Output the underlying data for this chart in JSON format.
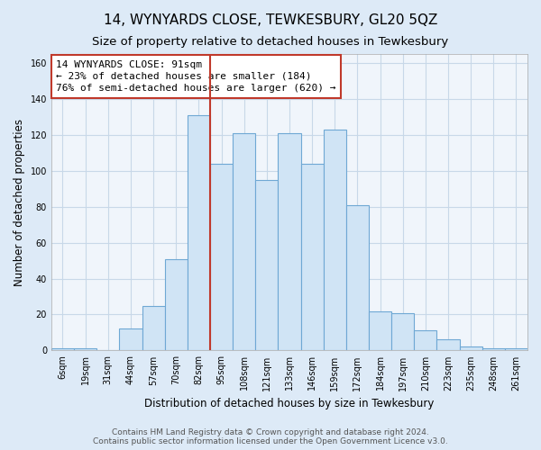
{
  "title": "14, WYNYARDS CLOSE, TEWKESBURY, GL20 5QZ",
  "subtitle": "Size of property relative to detached houses in Tewkesbury",
  "xlabel": "Distribution of detached houses by size in Tewkesbury",
  "ylabel": "Number of detached properties",
  "categories": [
    "6sqm",
    "19sqm",
    "31sqm",
    "44sqm",
    "57sqm",
    "70sqm",
    "82sqm",
    "95sqm",
    "108sqm",
    "121sqm",
    "133sqm",
    "146sqm",
    "159sqm",
    "172sqm",
    "184sqm",
    "197sqm",
    "210sqm",
    "223sqm",
    "235sqm",
    "248sqm",
    "261sqm"
  ],
  "values": [
    1,
    1,
    0,
    12,
    25,
    51,
    131,
    104,
    121,
    95,
    121,
    104,
    123,
    81,
    22,
    21,
    11,
    6,
    2,
    1,
    1
  ],
  "bar_color": "#d0e4f5",
  "bar_edge_color": "#6fa8d4",
  "vline_color": "#c0392b",
  "vline_x_index": 6.5,
  "annotation_text": "14 WYNYARDS CLOSE: 91sqm\n← 23% of detached houses are smaller (184)\n76% of semi-detached houses are larger (620) →",
  "annotation_box_color": "#ffffff",
  "annotation_box_edge": "#c0392b",
  "ylim": [
    0,
    165
  ],
  "yticks": [
    0,
    20,
    40,
    60,
    80,
    100,
    120,
    140,
    160
  ],
  "footer": "Contains HM Land Registry data © Crown copyright and database right 2024.\nContains public sector information licensed under the Open Government Licence v3.0.",
  "bg_color": "#ddeaf7",
  "plot_bg_color": "#f0f5fb",
  "title_fontsize": 11,
  "subtitle_fontsize": 9.5,
  "axis_label_fontsize": 8.5,
  "tick_fontsize": 7,
  "footer_fontsize": 6.5,
  "grid_color": "#c8d8e8"
}
